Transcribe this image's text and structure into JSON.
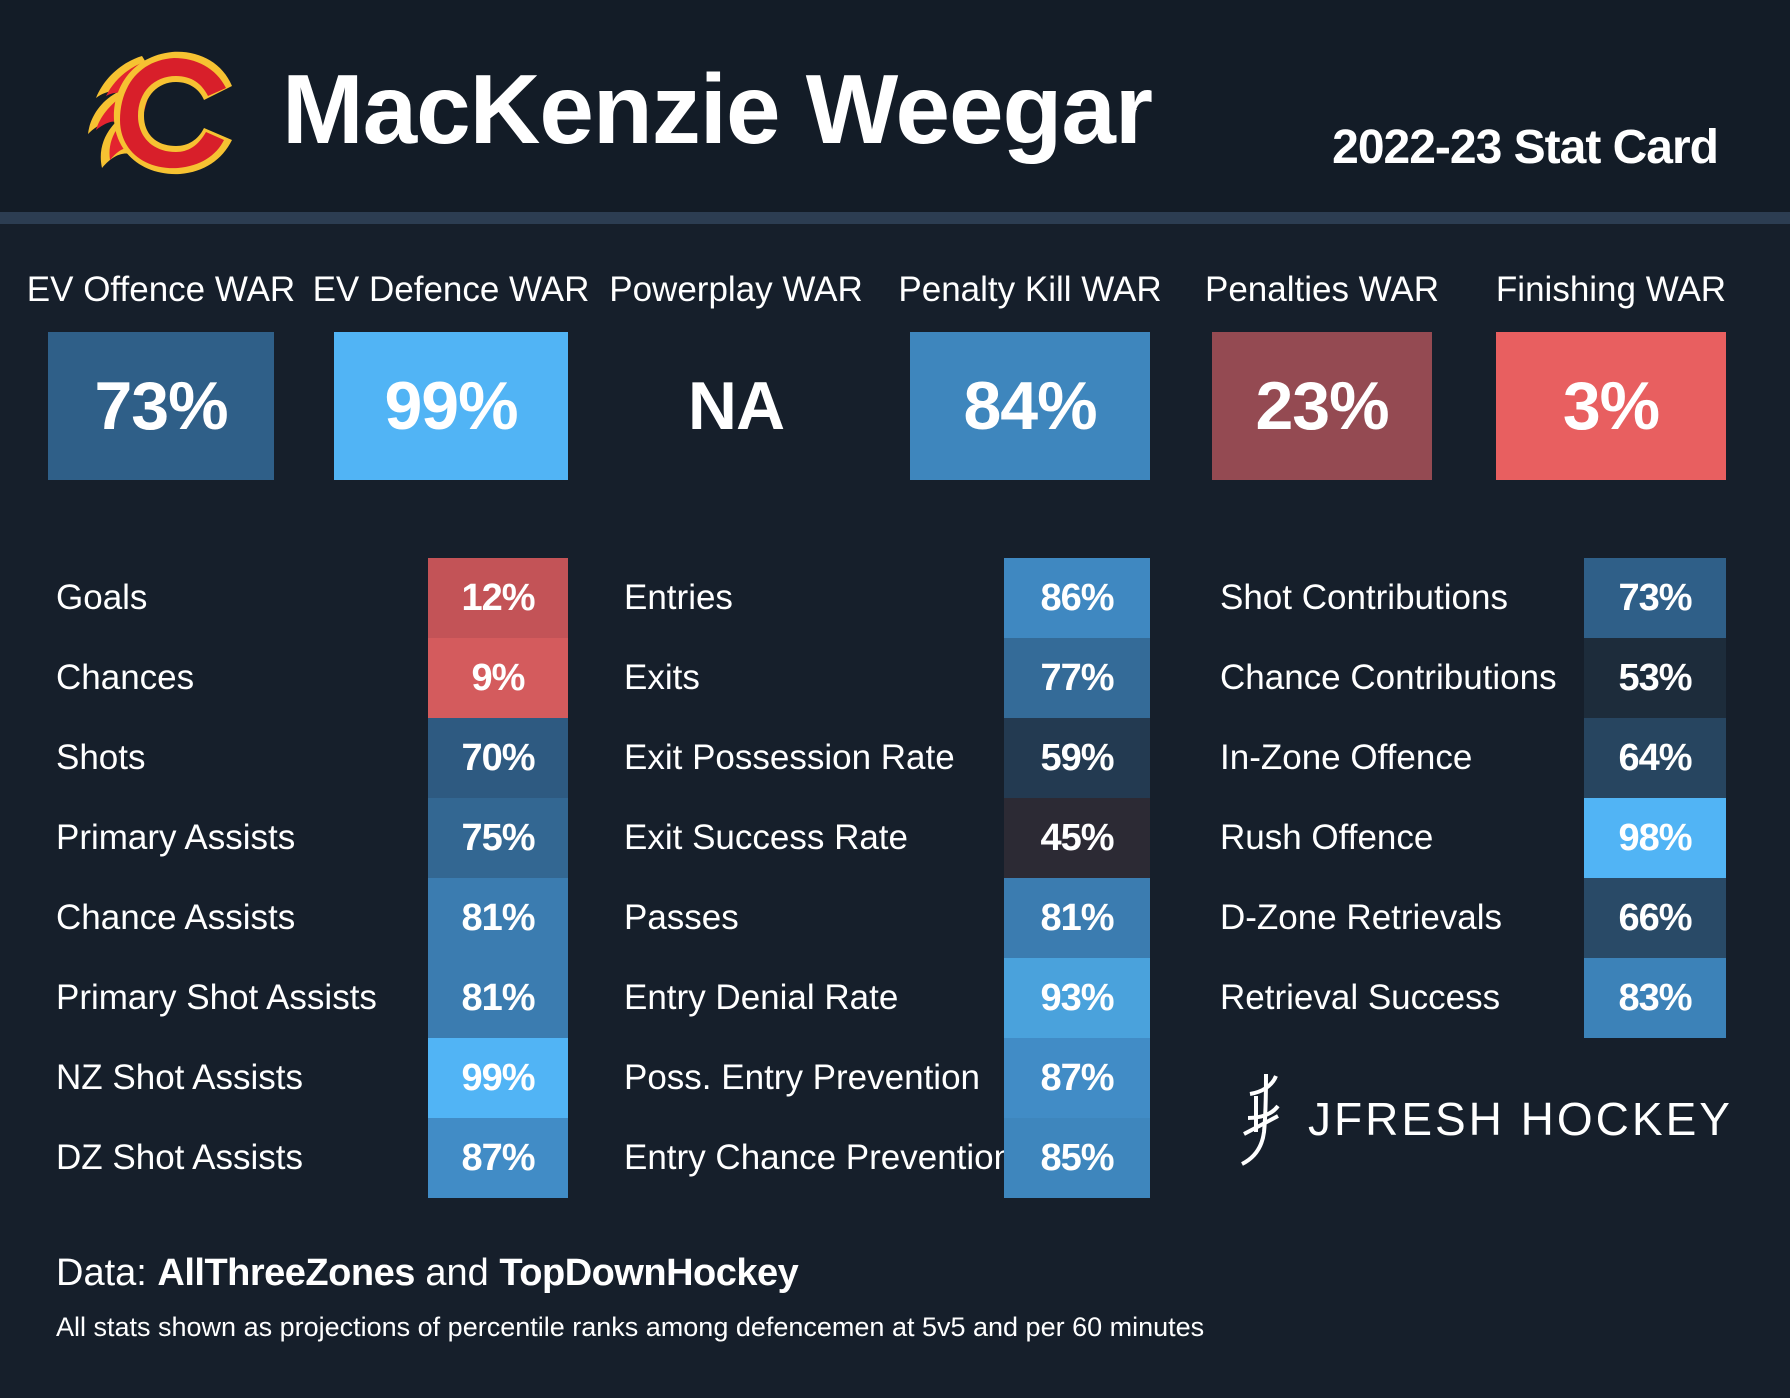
{
  "header": {
    "player_name": "MacKenzie Weegar",
    "card_title": "2022-23 Stat Card"
  },
  "war": [
    {
      "label": "EV Offence WAR",
      "value": "73%",
      "color": "#2f5f88"
    },
    {
      "label": "EV Defence WAR",
      "value": "99%",
      "color": "#51b4f5"
    },
    {
      "label": "Powerplay WAR",
      "value": "NA",
      "color": ""
    },
    {
      "label": "Penalty Kill WAR",
      "value": "84%",
      "color": "#3e86bd"
    },
    {
      "label": "Penalties WAR",
      "value": "23%",
      "color": "#944a52"
    },
    {
      "label": "Finishing WAR",
      "value": "3%",
      "color": "#e85f60"
    }
  ],
  "columns": [
    {
      "rows": [
        {
          "label": "Goals",
          "value": "12%",
          "color": "#c35357"
        },
        {
          "label": "Chances",
          "value": "9%",
          "color": "#d45b5d"
        },
        {
          "label": "Shots",
          "value": "70%",
          "color": "#2e5a81"
        },
        {
          "label": "Primary Assists",
          "value": "75%",
          "color": "#336792"
        },
        {
          "label": "Chance Assists",
          "value": "81%",
          "color": "#3b7cb0"
        },
        {
          "label": "Primary Shot Assists",
          "value": "81%",
          "color": "#3b7cb0"
        },
        {
          "label": "NZ Shot Assists",
          "value": "99%",
          "color": "#51b4f5"
        },
        {
          "label": "DZ Shot Assists",
          "value": "87%",
          "color": "#418cc6"
        }
      ]
    },
    {
      "rows": [
        {
          "label": "Entries",
          "value": "86%",
          "color": "#3f88c1"
        },
        {
          "label": "Exits",
          "value": "77%",
          "color": "#346b98"
        },
        {
          "label": "Exit Possession Rate",
          "value": "59%",
          "color": "#233a51"
        },
        {
          "label": "Exit Success Rate",
          "value": "45%",
          "color": "#2c2a34"
        },
        {
          "label": "Passes",
          "value": "81%",
          "color": "#3b7cb0"
        },
        {
          "label": "Entry Denial Rate",
          "value": "93%",
          "color": "#4aa2dc"
        },
        {
          "label": "Poss. Entry Prevention",
          "value": "87%",
          "color": "#418cc6"
        },
        {
          "label": "Entry Chance Prevention",
          "value": "85%",
          "color": "#3e86bd"
        }
      ]
    },
    {
      "rows": [
        {
          "label": "Shot Contributions",
          "value": "73%",
          "color": "#2f5f88"
        },
        {
          "label": "Chance Contributions",
          "value": "53%",
          "color": "#1d2c3b"
        },
        {
          "label": "In-Zone Offence",
          "value": "64%",
          "color": "#274560"
        },
        {
          "label": "Rush Offence",
          "value": "98%",
          "color": "#51b4f5"
        },
        {
          "label": "D-Zone Retrievals",
          "value": "66%",
          "color": "#294a67"
        },
        {
          "label": "Retrieval Success",
          "value": "83%",
          "color": "#3c82b8"
        }
      ]
    }
  ],
  "brand": {
    "text": "JFRESH HOCKEY"
  },
  "footer": {
    "data_prefix": "Data: ",
    "source1": "AllThreeZones",
    "joiner": " and ",
    "source2": "TopDownHockey",
    "note": "All stats shown as projections of percentile ranks among defencemen at 5v5 and per 60 minutes"
  }
}
